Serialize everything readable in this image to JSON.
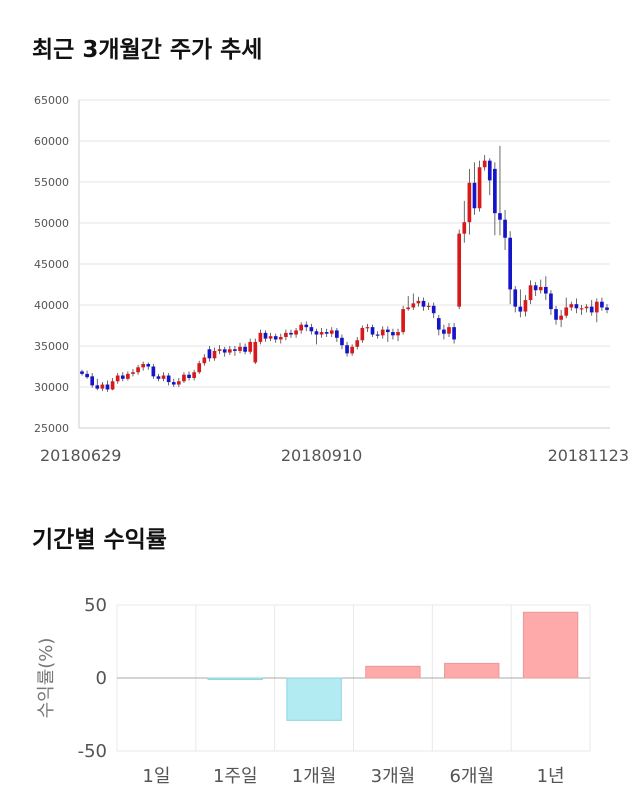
{
  "sections": {
    "price_title": "최근 3개월간 주가 추세",
    "returns_title": "기간별 수익률"
  },
  "colors": {
    "up": "#d7191c",
    "down": "#1414c8",
    "grid": "#e6e6e6",
    "return_positive": "#ffaaaa",
    "return_negative": "#b2ebf2"
  },
  "chart_data": [
    {
      "type": "candlestick",
      "title": "최근 3개월간 주가 추세",
      "ylim": [
        25000,
        65000
      ],
      "yticks": [
        25000,
        30000,
        35000,
        40000,
        45000,
        50000,
        55000,
        60000,
        65000
      ],
      "xtick_labels": [
        {
          "index": 0,
          "label": "20180629"
        },
        {
          "index": 47,
          "label": "20180910"
        },
        {
          "index": 96,
          "label": "20181123"
        }
      ],
      "grid": true,
      "candles": [
        [
          31900,
          31600,
          32100,
          31400
        ],
        [
          31600,
          31200,
          32000,
          31000
        ],
        [
          31300,
          30200,
          31700,
          29900
        ],
        [
          30200,
          29800,
          31000,
          29600
        ],
        [
          29800,
          30300,
          30600,
          29500
        ],
        [
          30300,
          29700,
          30800,
          29400
        ],
        [
          29700,
          30700,
          31100,
          29600
        ],
        [
          30700,
          31400,
          31700,
          30400
        ],
        [
          31400,
          31000,
          31800,
          30700
        ],
        [
          31000,
          31600,
          31900,
          30800
        ],
        [
          31600,
          31800,
          32200,
          31300
        ],
        [
          31800,
          32400,
          32700,
          31500
        ],
        [
          32400,
          32800,
          33100,
          32000
        ],
        [
          32800,
          32500,
          33000,
          32100
        ],
        [
          32500,
          31300,
          32800,
          31000
        ],
        [
          31300,
          31000,
          31600,
          30700
        ],
        [
          31000,
          31400,
          31800,
          30700
        ],
        [
          31400,
          30600,
          31700,
          30200
        ],
        [
          30600,
          30300,
          31000,
          30000
        ],
        [
          30300,
          30700,
          31100,
          30000
        ],
        [
          30700,
          31500,
          31800,
          30500
        ],
        [
          31500,
          31100,
          31900,
          30800
        ],
        [
          31100,
          31800,
          32100,
          30800
        ],
        [
          31800,
          32900,
          33200,
          31600
        ],
        [
          32900,
          33600,
          34000,
          32600
        ],
        [
          34600,
          33500,
          35000,
          33100
        ],
        [
          33500,
          34400,
          34800,
          33200
        ],
        [
          34400,
          34600,
          35100,
          34000
        ],
        [
          34600,
          34200,
          34900,
          33700
        ],
        [
          34200,
          34600,
          35000,
          33900
        ],
        [
          34600,
          34400,
          35000,
          33800
        ],
        [
          34400,
          34900,
          35400,
          34100
        ],
        [
          34900,
          34300,
          35300,
          34000
        ],
        [
          34300,
          35500,
          35900,
          34000
        ],
        [
          33000,
          35500,
          35900,
          32800
        ],
        [
          35500,
          36600,
          37000,
          35200
        ],
        [
          36600,
          35900,
          36900,
          35500
        ],
        [
          35900,
          36200,
          36600,
          35600
        ],
        [
          36200,
          35800,
          36500,
          35400
        ],
        [
          35800,
          36100,
          36500,
          35300
        ],
        [
          36100,
          36600,
          37000,
          35700
        ],
        [
          36600,
          36400,
          37000,
          36000
        ],
        [
          36400,
          36900,
          37200,
          36000
        ],
        [
          36900,
          37600,
          37900,
          36500
        ],
        [
          37600,
          37300,
          38000,
          36800
        ],
        [
          37300,
          36800,
          37700,
          36400
        ],
        [
          36800,
          36400,
          37100,
          35200
        ],
        [
          36400,
          36700,
          37200,
          36000
        ],
        [
          36700,
          36500,
          37100,
          36100
        ],
        [
          36500,
          36900,
          37300,
          36100
        ],
        [
          36900,
          36000,
          37200,
          35500
        ],
        [
          36000,
          35100,
          36400,
          34600
        ],
        [
          35100,
          34100,
          35500,
          33700
        ],
        [
          34100,
          34900,
          35200,
          33800
        ],
        [
          34900,
          35700,
          36100,
          34600
        ],
        [
          35700,
          37200,
          37500,
          35400
        ],
        [
          37200,
          37300,
          37700,
          36700
        ],
        [
          37300,
          36400,
          37600,
          36100
        ],
        [
          36400,
          36300,
          36800,
          35900
        ],
        [
          36300,
          37000,
          37400,
          35900
        ],
        [
          37000,
          36700,
          37400,
          35500
        ],
        [
          36700,
          36300,
          37100,
          35800
        ],
        [
          36300,
          36700,
          37100,
          35600
        ],
        [
          36700,
          39500,
          39900,
          36400
        ],
        [
          39500,
          39700,
          41100,
          39300
        ],
        [
          39700,
          40200,
          41400,
          39400
        ],
        [
          40200,
          40500,
          41000,
          39800
        ],
        [
          40500,
          39800,
          40900,
          39300
        ],
        [
          39800,
          39900,
          40300,
          39400
        ],
        [
          39900,
          39000,
          40300,
          38400
        ],
        [
          38400,
          37000,
          38800,
          36300
        ],
        [
          37000,
          36500,
          37600,
          35800
        ],
        [
          36500,
          37300,
          37800,
          36100
        ],
        [
          37300,
          35800,
          37800,
          35300
        ],
        [
          39800,
          48700,
          49200,
          39500
        ],
        [
          48700,
          50100,
          52700,
          47600
        ],
        [
          50100,
          54900,
          56600,
          48600
        ],
        [
          54900,
          51800,
          57400,
          51000
        ],
        [
          51800,
          56800,
          57600,
          51400
        ],
        [
          56800,
          57600,
          58300,
          56400
        ],
        [
          57600,
          55200,
          57900,
          53400
        ],
        [
          56600,
          51200,
          57400,
          48500
        ],
        [
          51200,
          50400,
          59400,
          48500
        ],
        [
          50400,
          48200,
          51600,
          46700
        ],
        [
          48200,
          41900,
          49000,
          40100
        ],
        [
          41900,
          39800,
          42300,
          39100
        ],
        [
          39800,
          39200,
          41900,
          38500
        ],
        [
          39200,
          40600,
          41200,
          38600
        ],
        [
          40600,
          42400,
          43000,
          40100
        ],
        [
          42400,
          41800,
          42800,
          41100
        ],
        [
          41800,
          42200,
          43100,
          41400
        ],
        [
          42200,
          41400,
          43500,
          40600
        ],
        [
          41400,
          39500,
          41800,
          38800
        ],
        [
          39500,
          38200,
          39900,
          37600
        ],
        [
          38200,
          38700,
          39400,
          37300
        ],
        [
          38700,
          39700,
          40900,
          38400
        ],
        [
          39700,
          40100,
          40400,
          39300
        ],
        [
          40100,
          39600,
          40800,
          39000
        ],
        [
          39600,
          39600,
          40000,
          38800
        ],
        [
          39600,
          39800,
          40100,
          39100
        ],
        [
          39800,
          39100,
          40600,
          38700
        ],
        [
          39100,
          40400,
          40800,
          37900
        ],
        [
          40400,
          39700,
          40900,
          39300
        ],
        [
          39700,
          39400,
          40100,
          39000
        ]
      ]
    },
    {
      "type": "bar",
      "title": "기간별 수익률",
      "ylabel": "수익률(%)",
      "ylim": [
        -50,
        50
      ],
      "yticks": [
        -50,
        0,
        50
      ],
      "grid": true,
      "categories": [
        "1일",
        "1주일",
        "1개월",
        "3개월",
        "6개월",
        "1년"
      ],
      "values": [
        0,
        -1,
        -29,
        8,
        10,
        45
      ]
    }
  ]
}
